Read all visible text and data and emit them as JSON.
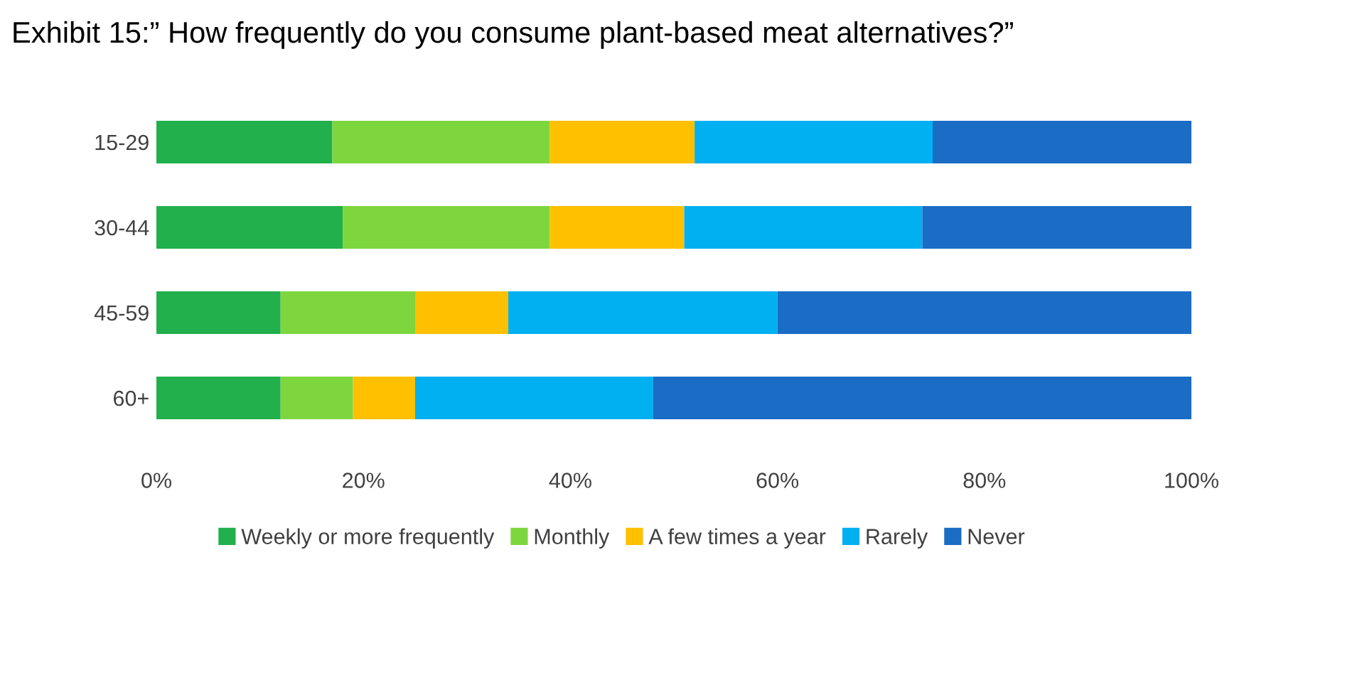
{
  "chart_data": {
    "type": "bar",
    "orientation": "horizontal",
    "stacked": true,
    "title": "Exhibit 15:” How frequently do you consume plant-based meat alternatives?”",
    "categories": [
      "15-29",
      "30-44",
      "45-59",
      "60+"
    ],
    "series": [
      {
        "name": "Weekly or more frequently",
        "color": "#21b04b",
        "values": [
          17,
          18,
          12,
          12
        ]
      },
      {
        "name": "Monthly",
        "color": "#7ed63f",
        "values": [
          21,
          20,
          13,
          7
        ]
      },
      {
        "name": "A few times a year",
        "color": "#ffc000",
        "values": [
          14,
          13,
          9,
          6
        ]
      },
      {
        "name": "Rarely",
        "color": "#00b0f0",
        "values": [
          23,
          23,
          26,
          23
        ]
      },
      {
        "name": "Never",
        "color": "#1a6cc4",
        "values": [
          25,
          26,
          40,
          52
        ]
      }
    ],
    "xlim": [
      0,
      100
    ],
    "xticks": [
      {
        "value": 0,
        "label": "0%"
      },
      {
        "value": 20,
        "label": "20%"
      },
      {
        "value": 40,
        "label": "40%"
      },
      {
        "value": 60,
        "label": "60%"
      },
      {
        "value": 80,
        "label": "80%"
      },
      {
        "value": 100,
        "label": "100%"
      }
    ],
    "grid": false,
    "legend": "bottom"
  }
}
